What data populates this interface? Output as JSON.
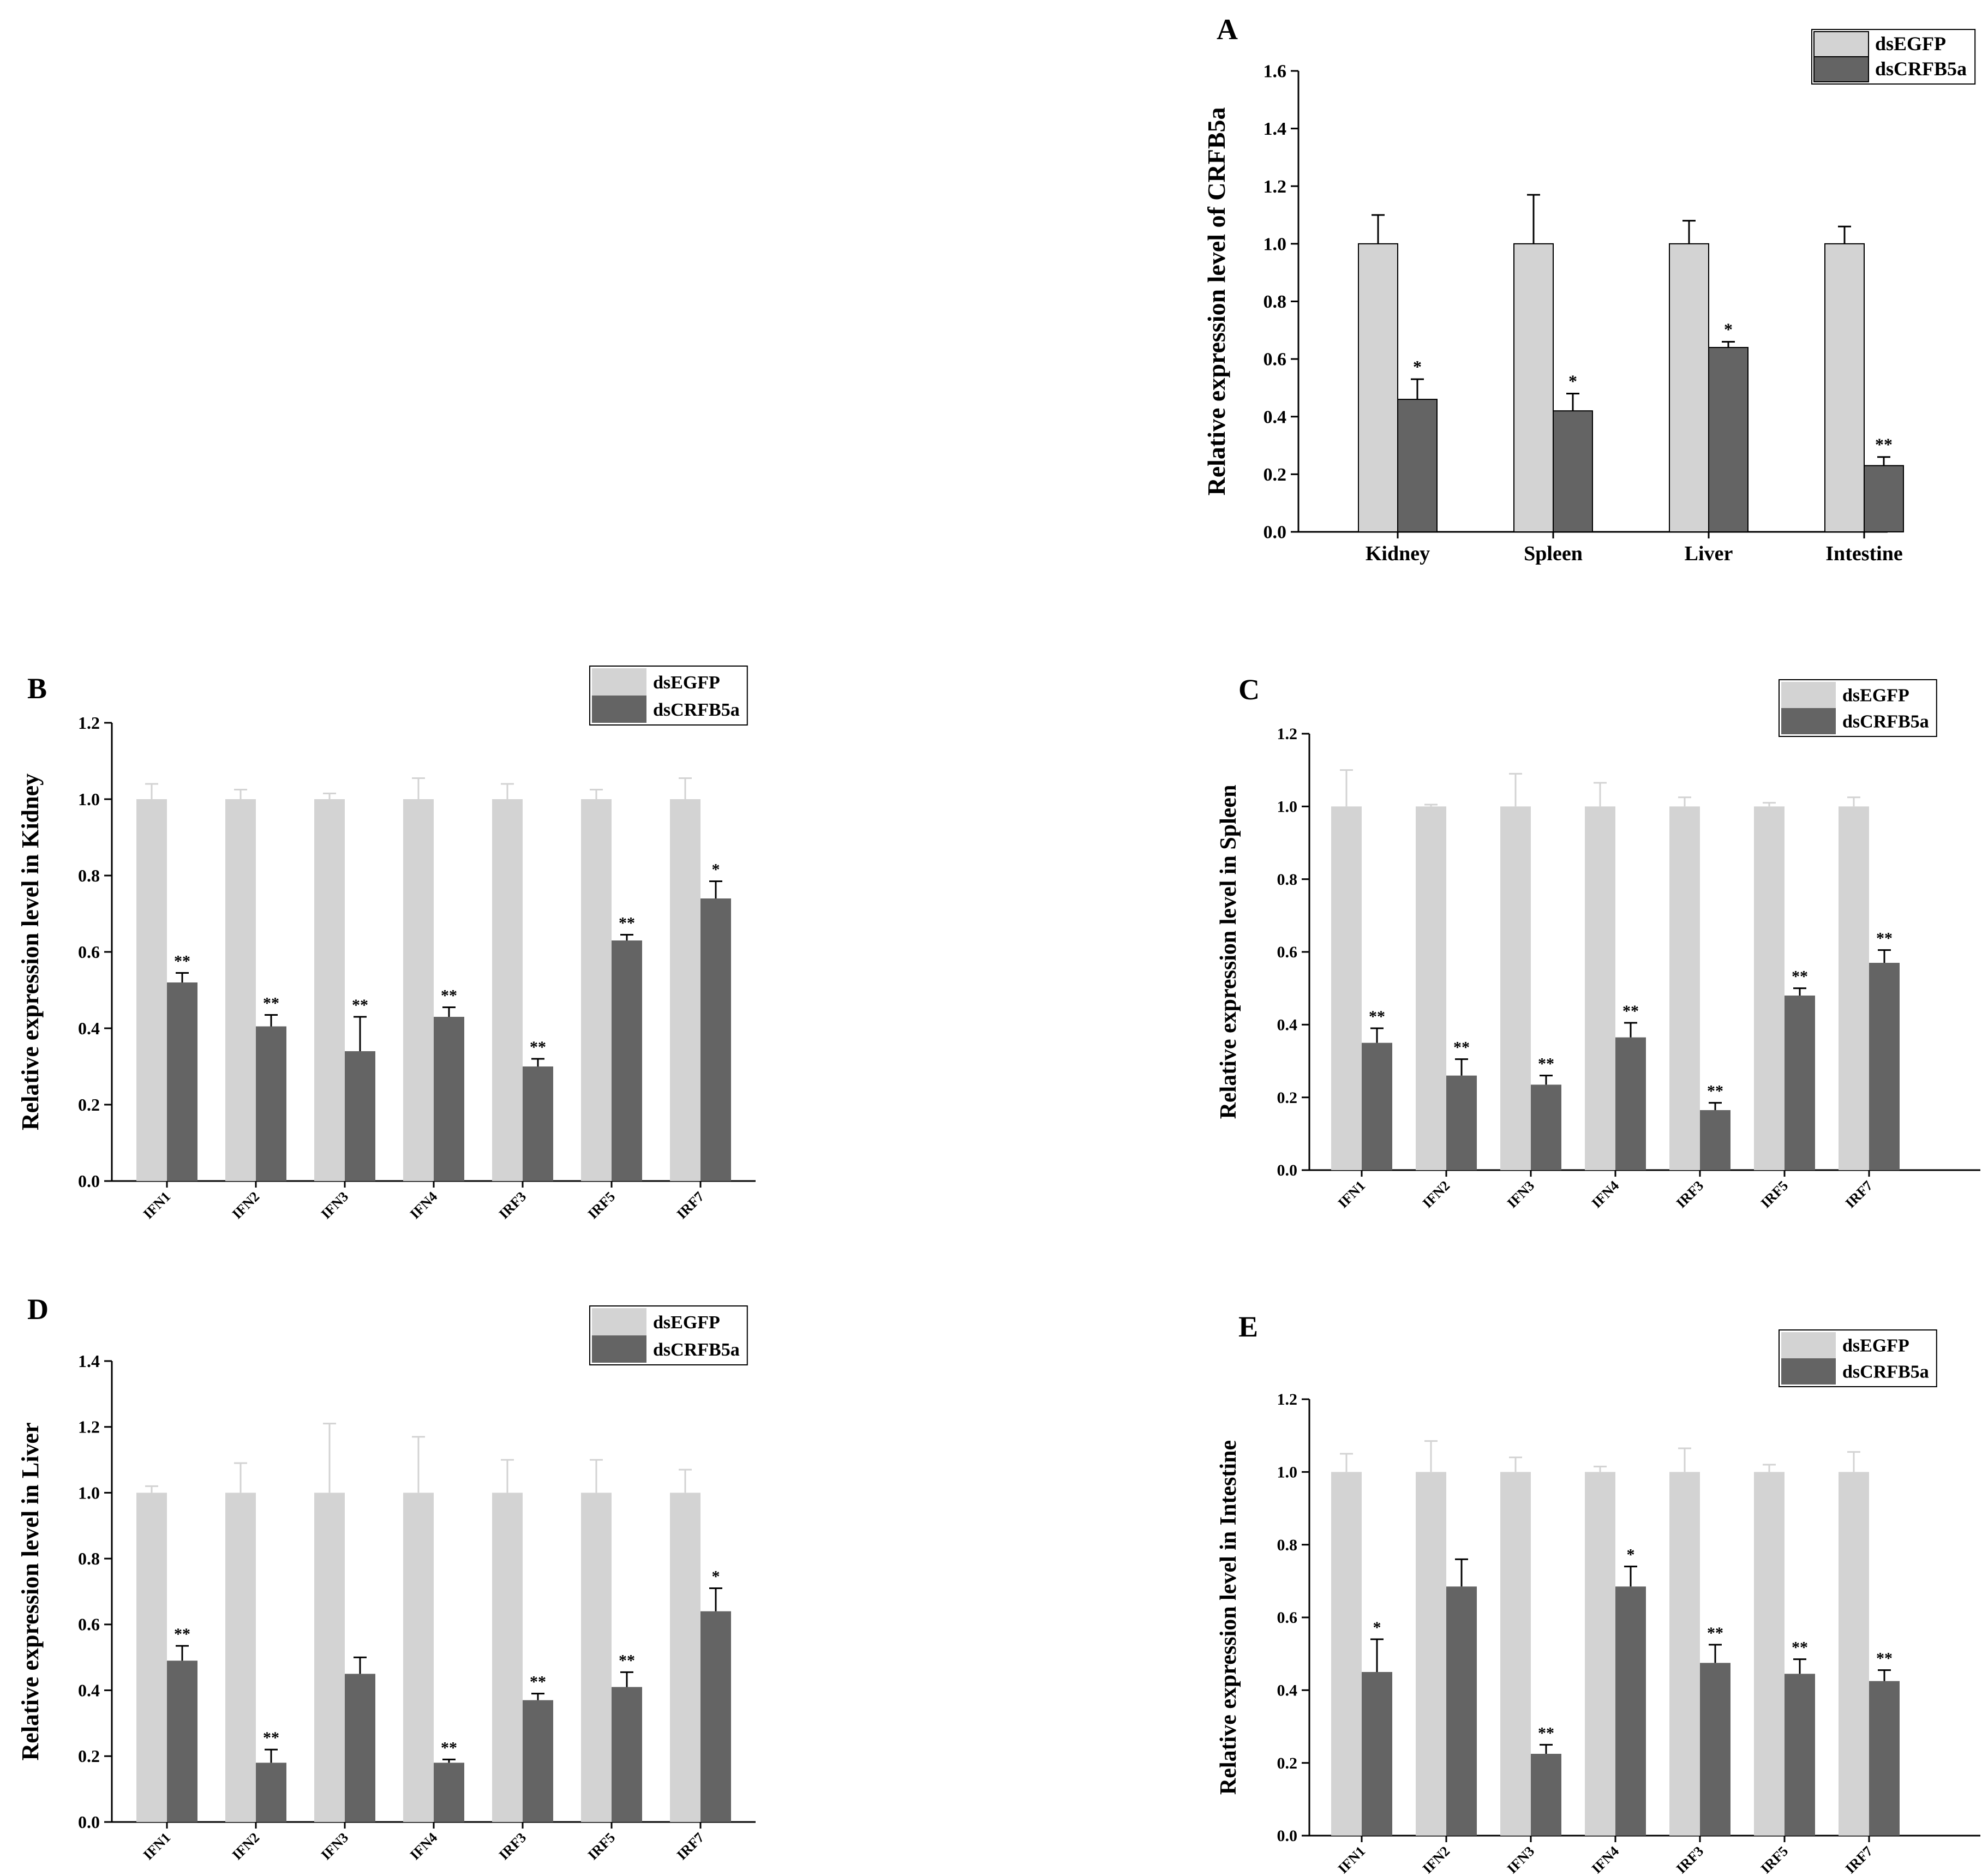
{
  "legend_labels": [
    "dsEGFP",
    "dsCRFB5a"
  ],
  "colors": {
    "control": "#d3d3d3",
    "treatment": "#646464",
    "axis": "#000000"
  },
  "chart_data": [
    {
      "panel": "A",
      "type": "bar",
      "style": "outlined",
      "ylabel": "Relative expression level of CRFB5a",
      "ylim": [
        0,
        1.6
      ],
      "yticks": [
        "0.0",
        "0.2",
        "0.4",
        "0.6",
        "0.8",
        "1.0",
        "1.2",
        "1.4",
        "1.6"
      ],
      "categories": [
        "Kidney",
        "Spleen",
        "Liver",
        "Intestine"
      ],
      "series": [
        {
          "name": "dsEGFP",
          "values": [
            1.0,
            1.0,
            1.0,
            1.0
          ],
          "errors": [
            0.1,
            0.17,
            0.08,
            0.06
          ],
          "sig": [
            "",
            "",
            "",
            ""
          ]
        },
        {
          "name": "dsCRFB5a",
          "values": [
            0.46,
            0.42,
            0.64,
            0.23
          ],
          "errors": [
            0.07,
            0.06,
            0.02,
            0.03
          ],
          "sig": [
            "*",
            "*",
            "*",
            "**"
          ]
        }
      ]
    },
    {
      "panel": "B",
      "type": "bar",
      "style": "flat",
      "ylabel": "Relative expression level in Kidney",
      "ylim": [
        0,
        1.2
      ],
      "yticks": [
        "0.0",
        "0.2",
        "0.4",
        "0.6",
        "0.8",
        "1.0",
        "1.2"
      ],
      "categories": [
        "IFN1",
        "IFN2",
        "IFN3",
        "IFN4",
        "IRF3",
        "IRF5",
        "IRF7"
      ],
      "series": [
        {
          "name": "dsEGFP",
          "values": [
            1.0,
            1.0,
            1.0,
            1.0,
            1.0,
            1.0,
            1.0
          ],
          "errors": [
            0.04,
            0.025,
            0.015,
            0.055,
            0.04,
            0.025,
            0.055
          ],
          "sig": [
            "",
            "",
            "",
            "",
            "",
            "",
            ""
          ]
        },
        {
          "name": "dsCRFB5a",
          "values": [
            0.52,
            0.405,
            0.34,
            0.43,
            0.3,
            0.63,
            0.74
          ],
          "errors": [
            0.025,
            0.03,
            0.09,
            0.025,
            0.02,
            0.015,
            0.045
          ],
          "sig": [
            "**",
            "**",
            "**",
            "**",
            "**",
            "**",
            "*"
          ]
        }
      ]
    },
    {
      "panel": "C",
      "type": "bar",
      "style": "flat",
      "ylabel": "Relative expression level in Spleen",
      "ylim": [
        0,
        1.2
      ],
      "yticks": [
        "0.0",
        "0.2",
        "0.4",
        "0.6",
        "0.8",
        "1.0",
        "1.2"
      ],
      "categories": [
        "IFN1",
        "IFN2",
        "IFN3",
        "IFN4",
        "IRF3",
        "IRF5",
        "IRF7"
      ],
      "series": [
        {
          "name": "dsEGFP",
          "values": [
            1.0,
            1.0,
            1.0,
            1.0,
            1.0,
            1.0,
            1.0
          ],
          "errors": [
            0.1,
            0.005,
            0.09,
            0.065,
            0.025,
            0.01,
            0.025
          ],
          "sig": [
            "",
            "",
            "",
            "",
            "",
            "",
            ""
          ]
        },
        {
          "name": "dsCRFB5a",
          "values": [
            0.35,
            0.26,
            0.235,
            0.365,
            0.165,
            0.48,
            0.57
          ],
          "errors": [
            0.04,
            0.045,
            0.025,
            0.04,
            0.02,
            0.02,
            0.035
          ],
          "sig": [
            "**",
            "**",
            "**",
            "**",
            "**",
            "**",
            "**"
          ]
        }
      ]
    },
    {
      "panel": "D",
      "type": "bar",
      "style": "flat",
      "ylabel": "Relative expression level in Liver",
      "ylim": [
        0,
        1.4
      ],
      "yticks": [
        "0.0",
        "0.2",
        "0.4",
        "0.6",
        "0.8",
        "1.0",
        "1.2",
        "1.4"
      ],
      "categories": [
        "IFN1",
        "IFN2",
        "IFN3",
        "IFN4",
        "IRF3",
        "IRF5",
        "IRF7"
      ],
      "series": [
        {
          "name": "dsEGFP",
          "values": [
            1.0,
            1.0,
            1.0,
            1.0,
            1.0,
            1.0,
            1.0
          ],
          "errors": [
            0.02,
            0.09,
            0.21,
            0.17,
            0.1,
            0.1,
            0.07
          ],
          "sig": [
            "",
            "",
            "",
            "",
            "",
            "",
            ""
          ]
        },
        {
          "name": "dsCRFB5a",
          "values": [
            0.49,
            0.18,
            0.45,
            0.18,
            0.37,
            0.41,
            0.64
          ],
          "errors": [
            0.045,
            0.04,
            0.05,
            0.01,
            0.02,
            0.045,
            0.07
          ],
          "sig": [
            "**",
            "**",
            "",
            "**",
            "**",
            "**",
            "*"
          ]
        }
      ]
    },
    {
      "panel": "E",
      "type": "bar",
      "style": "flat",
      "ylabel": "Relative expression level in Intestine",
      "ylim": [
        0,
        1.2
      ],
      "yticks": [
        "0.0",
        "0.2",
        "0.4",
        "0.6",
        "0.8",
        "1.0",
        "1.2"
      ],
      "categories": [
        "IFN1",
        "IFN2",
        "IFN3",
        "IFN4",
        "IRF3",
        "IRF5",
        "IRF7"
      ],
      "series": [
        {
          "name": "dsEGFP",
          "values": [
            1.0,
            1.0,
            1.0,
            1.0,
            1.0,
            1.0,
            1.0
          ],
          "errors": [
            0.05,
            0.085,
            0.04,
            0.015,
            0.065,
            0.02,
            0.055
          ],
          "sig": [
            "",
            "",
            "",
            "",
            "",
            "",
            ""
          ]
        },
        {
          "name": "dsCRFB5a",
          "values": [
            0.45,
            0.685,
            0.225,
            0.685,
            0.475,
            0.445,
            0.425
          ],
          "errors": [
            0.09,
            0.075,
            0.025,
            0.055,
            0.05,
            0.04,
            0.03
          ],
          "sig": [
            "*",
            "",
            "**",
            "*",
            "**",
            "**",
            "**"
          ]
        }
      ]
    }
  ]
}
